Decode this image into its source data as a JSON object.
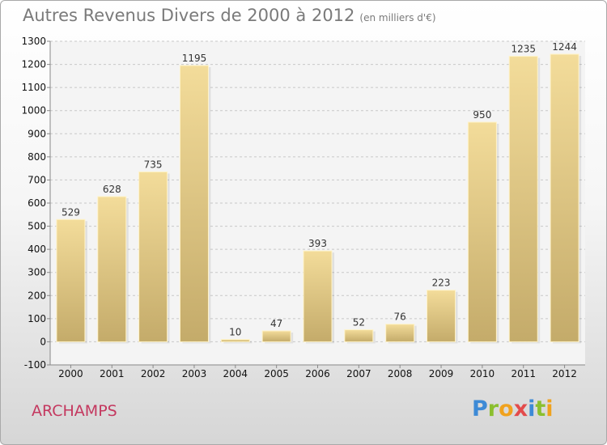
{
  "chart_data": {
    "type": "bar",
    "title": "Autres Revenus Divers de 2000 à 2012",
    "subtitle": "(en milliers d'€)",
    "categories": [
      "2000",
      "2001",
      "2002",
      "2003",
      "2004",
      "2005",
      "2006",
      "2007",
      "2008",
      "2009",
      "2010",
      "2011",
      "2012"
    ],
    "values": [
      529,
      628,
      735,
      1195,
      10,
      47,
      393,
      52,
      76,
      223,
      950,
      1235,
      1244
    ],
    "ylim": [
      -100,
      1300
    ],
    "yticks": [
      -100,
      0,
      100,
      200,
      300,
      400,
      500,
      600,
      700,
      800,
      900,
      1000,
      1100,
      1200,
      1300
    ],
    "grid": true,
    "xlabel": "",
    "ylabel": ""
  },
  "footer": {
    "place": "ARCHAMPS",
    "brand_letters": [
      "P",
      "r",
      "o",
      "x",
      "i",
      "t",
      "i"
    ]
  },
  "colors": {
    "bar_light": "#f3dc9a",
    "bar_dark": "#c4ab6a",
    "grid": "#c8c8c8",
    "title": "#7a7a7a",
    "place": "#c4385f",
    "brand": [
      "#3d8ad6",
      "#8bbf2f",
      "#f0a21e",
      "#e34b4b",
      "#3d8ad6",
      "#8bbf2f",
      "#f0a21e"
    ]
  }
}
